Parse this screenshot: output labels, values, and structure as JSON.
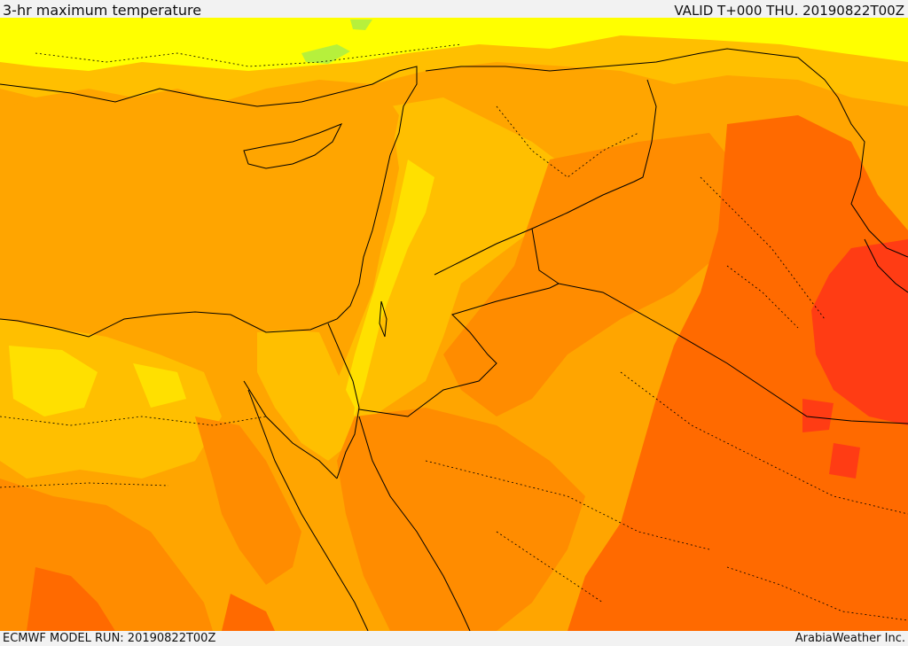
{
  "header": {
    "title": "3-hr maximum temperature",
    "valid_time": "VALID T+000 THU. 20190822T00Z"
  },
  "footer": {
    "model_run": "ECMWF MODEL RUN: 20190822T00Z",
    "credit": "ArabiaWeather Inc."
  },
  "palette": {
    "pale_yellow": "#ffff00",
    "yellow": "#ffe000",
    "light_orange": "#ffbf00",
    "orange": "#ffa500",
    "dark_orange": "#ff8c00",
    "red_orange": "#ff6a00",
    "red": "#ff3c14",
    "green": "#b6f03c",
    "borders": "#000000"
  }
}
